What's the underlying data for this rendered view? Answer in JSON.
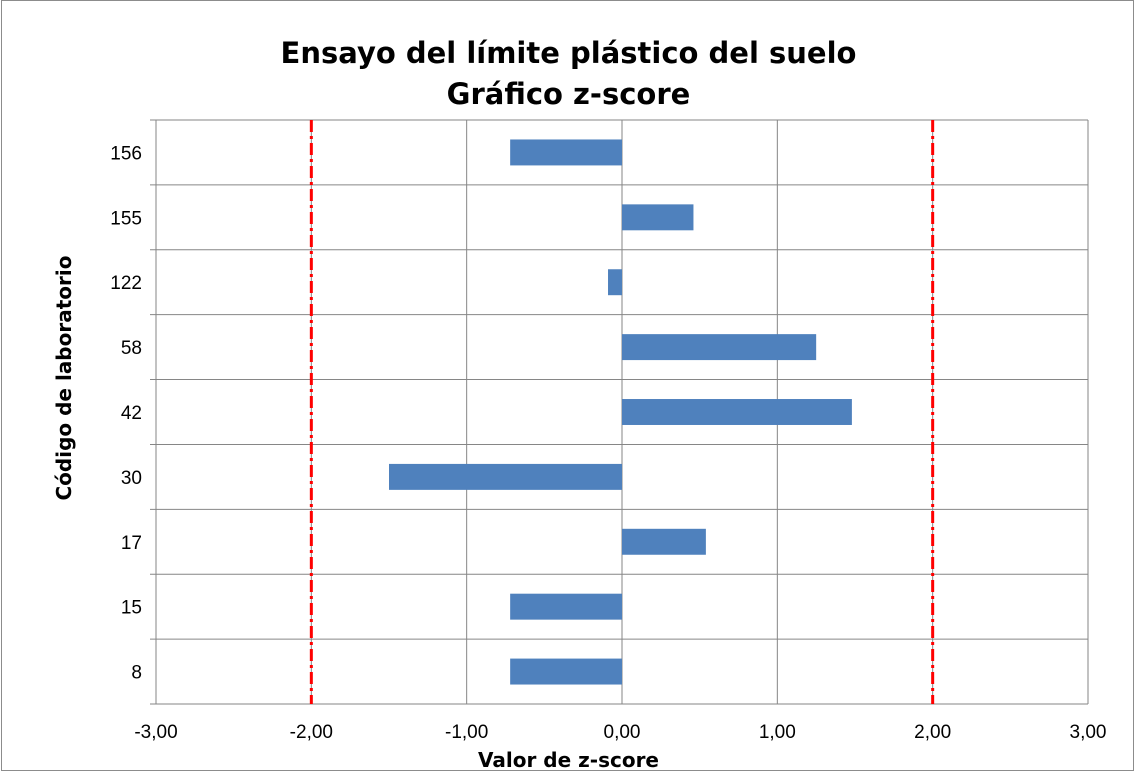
{
  "chart_data": {
    "type": "bar",
    "orientation": "horizontal",
    "title": "Ensayo del límite plástico del suelo",
    "subtitle": "Gráfico z-score",
    "xlabel": "Valor de z-score",
    "ylabel": "Código de laboratorio",
    "categories": [
      "156",
      "155",
      "122",
      "58",
      "42",
      "30",
      "17",
      "15",
      "8"
    ],
    "values": [
      -0.72,
      0.46,
      -0.09,
      1.25,
      1.48,
      -1.5,
      0.54,
      -0.72,
      -0.72
    ],
    "xlim": [
      -3,
      3
    ],
    "xticks": [
      "-3,00",
      "-2,00",
      "-1,00",
      "0,00",
      "1,00",
      "2,00",
      "3,00"
    ],
    "reference_lines": [
      -2,
      2
    ],
    "grid": true,
    "legend": "none",
    "colors": {
      "bar": "#4f81bd",
      "reference_line": "#ff0000",
      "grid": "#868686"
    }
  }
}
